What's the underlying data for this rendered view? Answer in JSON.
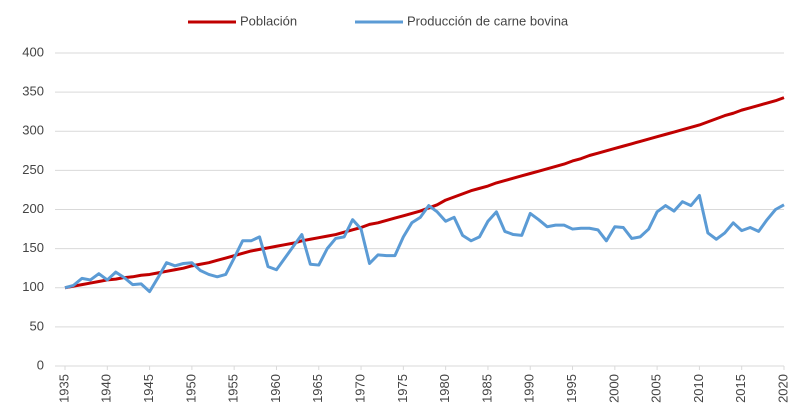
{
  "chart_data": {
    "type": "line",
    "x": [
      1935,
      1936,
      1937,
      1938,
      1939,
      1940,
      1941,
      1942,
      1943,
      1944,
      1945,
      1946,
      1947,
      1948,
      1949,
      1950,
      1951,
      1952,
      1953,
      1954,
      1955,
      1956,
      1957,
      1958,
      1959,
      1960,
      1961,
      1962,
      1963,
      1964,
      1965,
      1966,
      1967,
      1968,
      1969,
      1970,
      1971,
      1972,
      1973,
      1974,
      1975,
      1976,
      1977,
      1978,
      1979,
      1980,
      1981,
      1982,
      1983,
      1984,
      1985,
      1986,
      1987,
      1988,
      1989,
      1990,
      1991,
      1992,
      1993,
      1994,
      1995,
      1996,
      1997,
      1998,
      1999,
      2000,
      2001,
      2002,
      2003,
      2004,
      2005,
      2006,
      2007,
      2008,
      2009,
      2010,
      2011,
      2012,
      2013,
      2014,
      2015,
      2016,
      2017,
      2018,
      2019,
      2020
    ],
    "series": [
      {
        "name": "Población",
        "color": "#c00000",
        "values": [
          100,
          102,
          104,
          106,
          108,
          110,
          111,
          113,
          114,
          116,
          117,
          119,
          121,
          123,
          125,
          128,
          130,
          132,
          135,
          138,
          141,
          144,
          147,
          149,
          151,
          153,
          155,
          157,
          160,
          162,
          164,
          166,
          168,
          171,
          174,
          177,
          181,
          183,
          186,
          189,
          192,
          195,
          198,
          202,
          206,
          212,
          216,
          220,
          224,
          227,
          230,
          234,
          237,
          240,
          243,
          246,
          249,
          252,
          255,
          258,
          262,
          265,
          269,
          272,
          275,
          278,
          281,
          284,
          287,
          290,
          293,
          296,
          299,
          302,
          305,
          308,
          312,
          316,
          320,
          323,
          327,
          330,
          333,
          336,
          339,
          343
        ]
      },
      {
        "name": "Producción de carne bovina",
        "color": "#5b9bd5",
        "values": [
          100,
          103,
          112,
          110,
          118,
          110,
          120,
          113,
          104,
          105,
          95,
          113,
          132,
          128,
          131,
          132,
          122,
          117,
          114,
          117,
          138,
          160,
          160,
          165,
          127,
          123,
          138,
          153,
          168,
          130,
          129,
          150,
          163,
          165,
          187,
          175,
          131,
          142,
          141,
          141,
          165,
          183,
          190,
          205,
          197,
          185,
          190,
          167,
          160,
          165,
          185,
          197,
          172,
          168,
          167,
          195,
          187,
          178,
          180,
          180,
          175,
          176,
          176,
          174,
          160,
          178,
          177,
          163,
          165,
          175,
          197,
          205,
          198,
          210,
          205,
          218,
          170,
          162,
          170,
          183,
          173,
          177,
          172,
          187,
          200,
          206
        ]
      }
    ],
    "xlim": [
      1935,
      2020
    ],
    "xticks": [
      1935,
      1940,
      1945,
      1950,
      1955,
      1960,
      1965,
      1970,
      1975,
      1980,
      1985,
      1990,
      1995,
      2000,
      2005,
      2010,
      2015,
      2020
    ],
    "ylim": [
      0,
      400
    ],
    "yticks": [
      0,
      50,
      100,
      150,
      200,
      250,
      300,
      350,
      400
    ],
    "grid": true,
    "legend": "top"
  }
}
